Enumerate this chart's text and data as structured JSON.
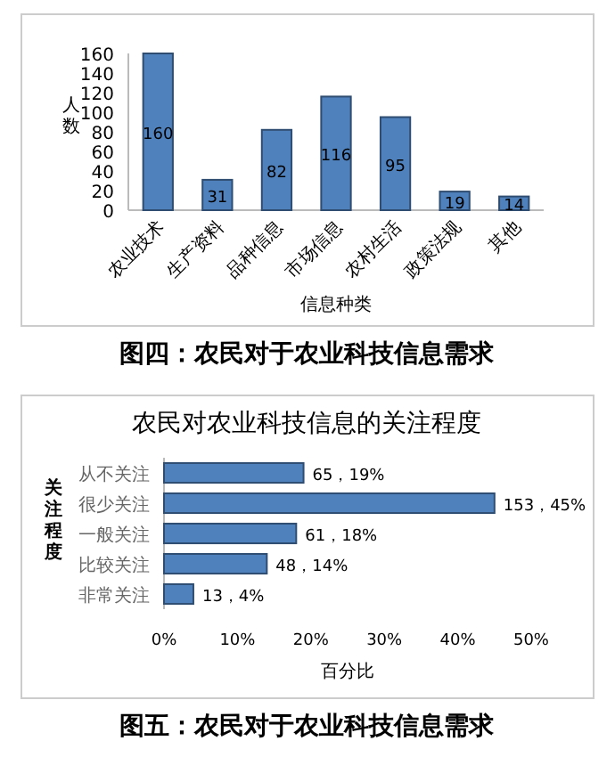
{
  "chart_data": [
    {
      "type": "bar",
      "xlabel": "信息种类",
      "ylabel": "人数",
      "categories": [
        "农业技术",
        "生产资料",
        "品种信息",
        "市场信息",
        "农村生活",
        "政策法规",
        "其他"
      ],
      "values": [
        160,
        31,
        82,
        116,
        95,
        19,
        14
      ],
      "color": "#4f81bd",
      "ylim": [
        0,
        160
      ],
      "yticks": [
        0,
        20,
        40,
        60,
        80,
        100,
        120,
        140,
        160
      ],
      "data_labels": true,
      "annotations": [
        "图四：农民对于农业科技信息需求"
      ]
    },
    {
      "type": "bar",
      "orientation": "horizontal",
      "title": "农民对农业科技信息的关注程度",
      "xlabel": "百分比",
      "ylabel": "关注程度",
      "categories": [
        "从不关注",
        "很少关注",
        "一般关注",
        "比较关注",
        "非常关注"
      ],
      "values": [
        19,
        45,
        18,
        14,
        4
      ],
      "value_labels": [
        "65，19%",
        "153，45%",
        "61，18%",
        "48，14%",
        "13，4%"
      ],
      "color": "#4f81bd",
      "xlim": [
        0,
        50
      ],
      "xticks": [
        {
          "value": 0,
          "label": "0%"
        },
        {
          "value": 10,
          "label": "10%"
        },
        {
          "value": 20,
          "label": "20%"
        },
        {
          "value": 30,
          "label": "30%"
        },
        {
          "value": 40,
          "label": "40%"
        },
        {
          "value": 50,
          "label": "50%"
        }
      ],
      "annotations": [
        "图五：农民对于农业科技信息需求"
      ]
    }
  ]
}
